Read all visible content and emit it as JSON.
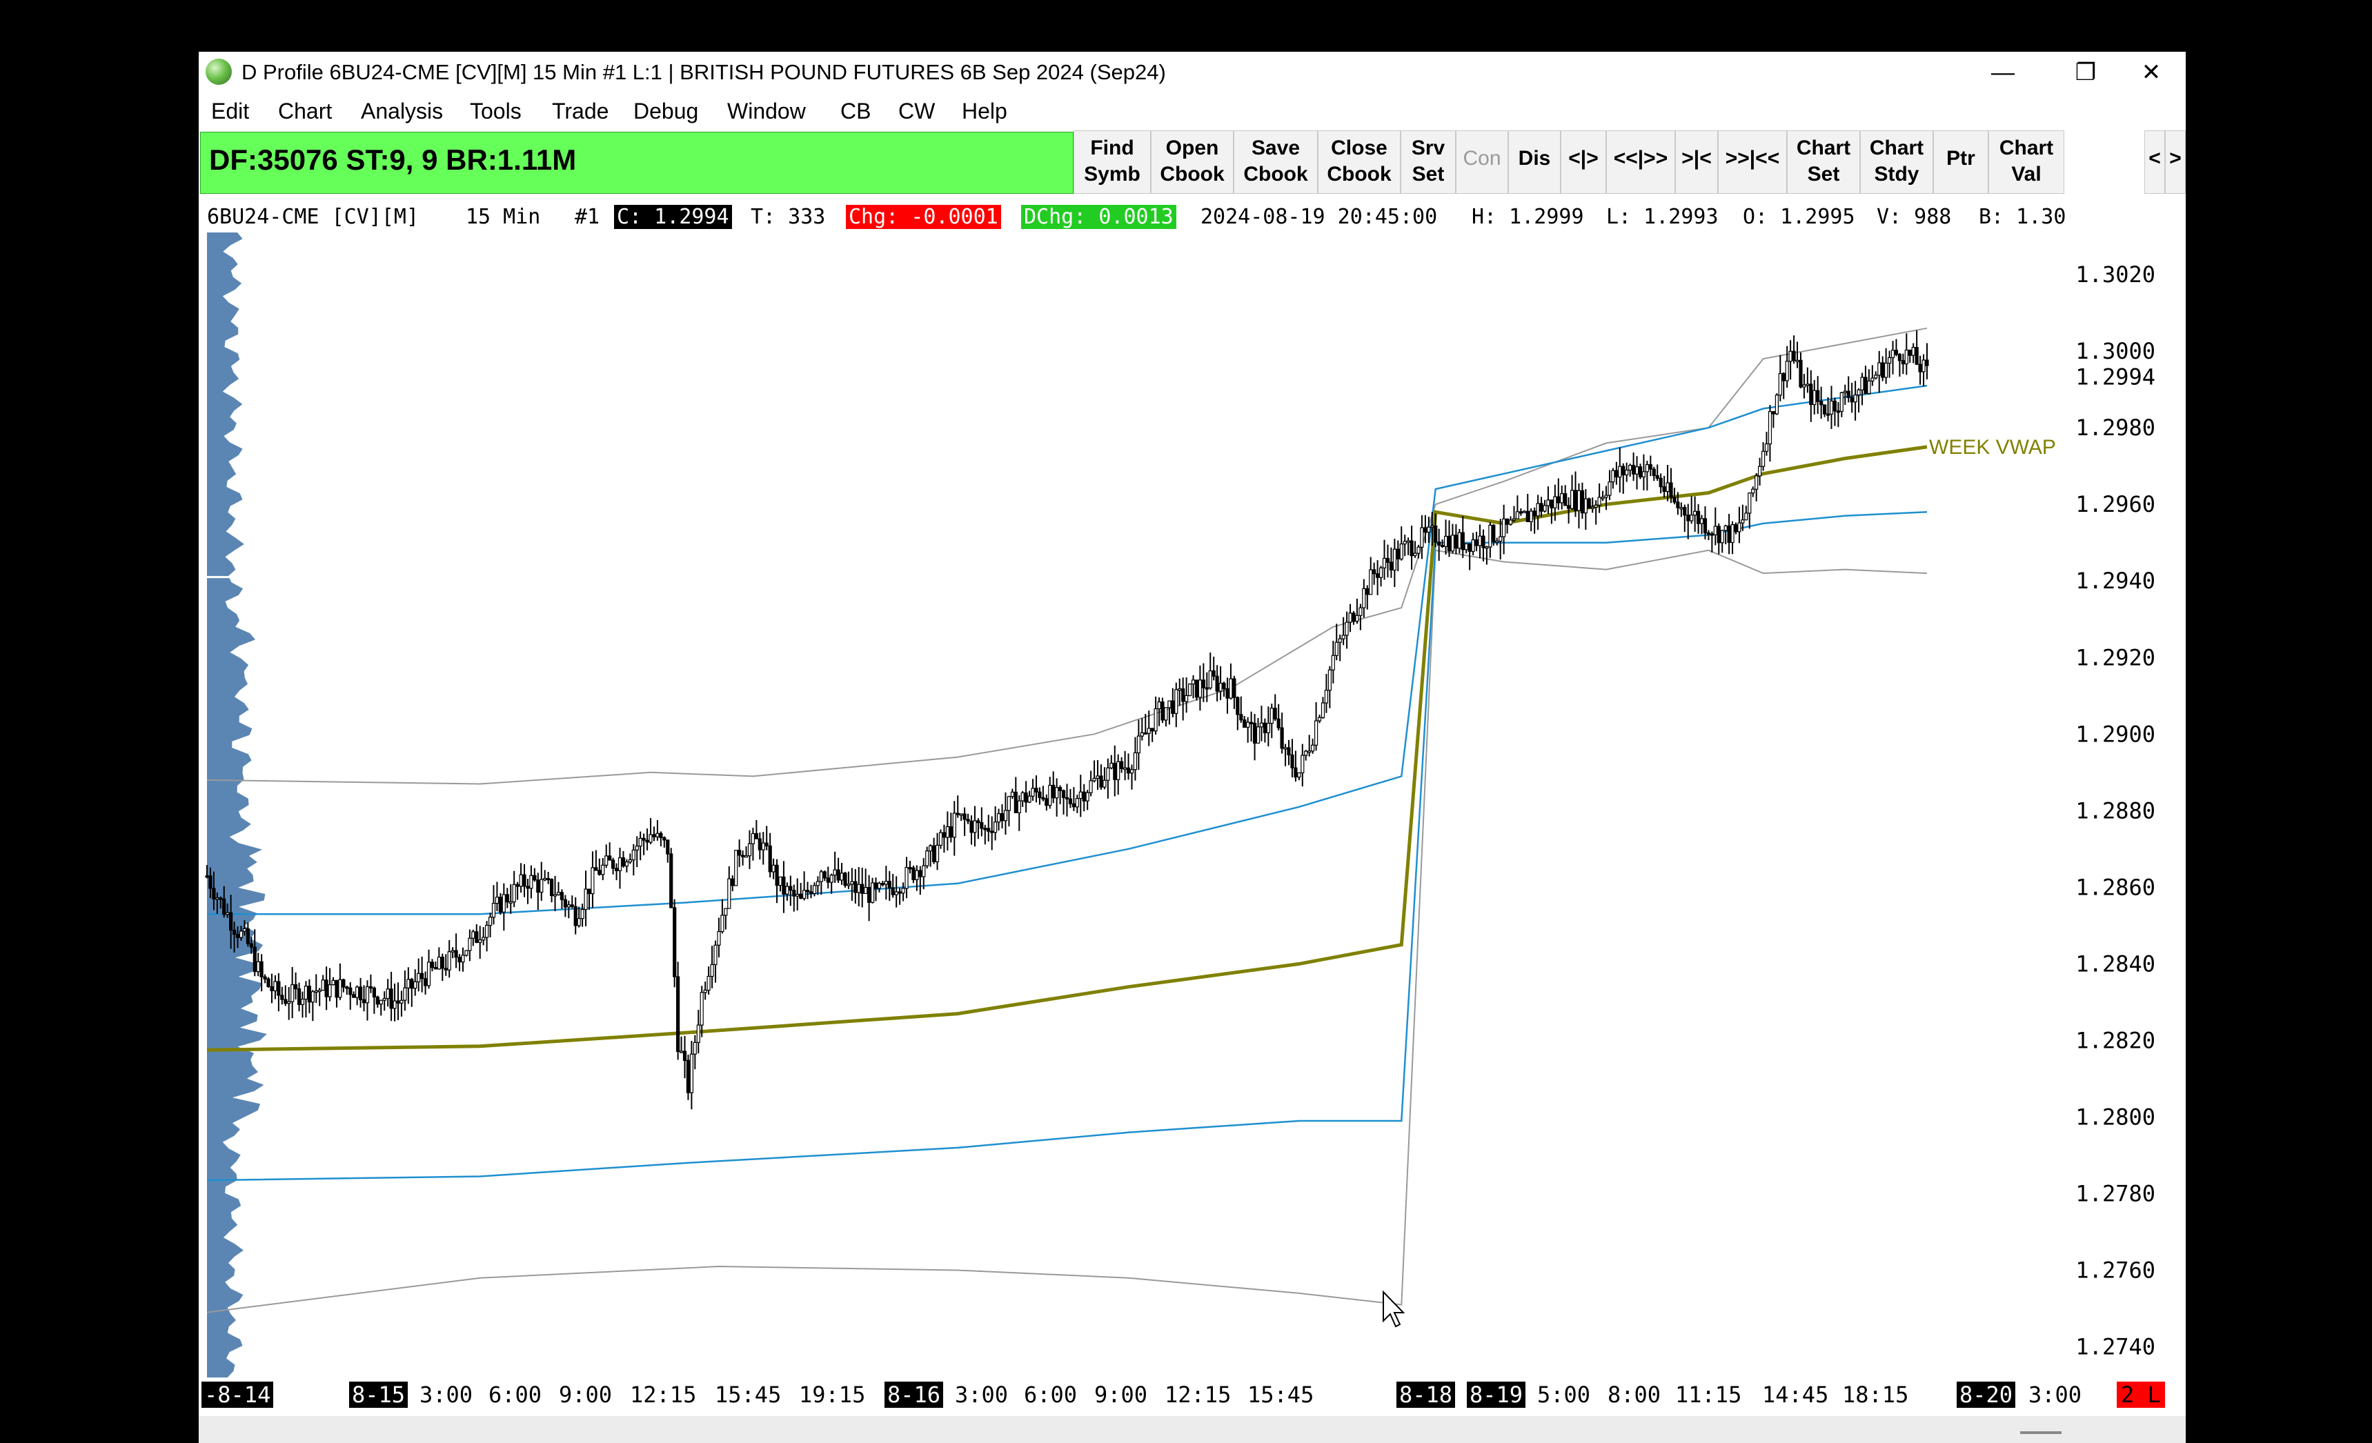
{
  "window": {
    "title": "D Profile 6BU24-CME [CV][M]  15 Min  #1 L:1 | BRITISH POUND FUTURES 6B Sep 2024 (Sep24)",
    "minimize_glyph": "—",
    "maximize_glyph": "❐",
    "close_glyph": "✕",
    "icon": "globe-icon"
  },
  "menu": [
    "Edit",
    "Chart",
    "Analysis",
    "Tools",
    "Trade",
    "Debug",
    "Window",
    "CB",
    "CW",
    "Help"
  ],
  "status": {
    "text": "DF:35076  ST:9, 9  BR:1.11M",
    "color": "#66ff5a"
  },
  "toolbar": [
    {
      "label": "Find\nSymb",
      "enabled": true
    },
    {
      "label": "Open\nCbook",
      "enabled": true
    },
    {
      "label": "Save\nCbook",
      "enabled": true
    },
    {
      "label": "Close\nCbook",
      "enabled": true
    },
    {
      "label": "Srv\nSet",
      "enabled": true
    },
    {
      "label": "Con",
      "enabled": false
    },
    {
      "label": "Dis",
      "enabled": true
    },
    {
      "label": "<|>",
      "enabled": true
    },
    {
      "label": "<<|>>",
      "enabled": true
    },
    {
      "label": ">|<",
      "enabled": true
    },
    {
      "label": ">>|<<",
      "enabled": true
    },
    {
      "label": "Chart\nSet",
      "enabled": true
    },
    {
      "label": "Chart\nStdy",
      "enabled": true
    },
    {
      "label": "Ptr",
      "enabled": true
    },
    {
      "label": "Chart\nVal",
      "enabled": true
    },
    {
      "label": "<",
      "enabled": true
    },
    {
      "label": ">",
      "enabled": true
    }
  ],
  "info": {
    "symbol": "6BU24-CME [CV][M]",
    "interval": "15 Min",
    "chart_num": "#1",
    "close": "C: 1.2994",
    "trades": "T: 333",
    "change": "Chg: -0.0001",
    "day_change": "DChg: 0.0013",
    "datetime": "2024-08-19 20:45:00",
    "high": "H: 1.2999",
    "low": "L: 1.2993",
    "open": "O: 1.2995",
    "volume": "V: 988",
    "bid": "B: 1.30",
    "colors": {
      "change_bg": "#ff0000",
      "day_change_bg": "#22cc22",
      "close_bg": "#000000"
    }
  },
  "chart_data": {
    "type": "line",
    "series_kind": "candlestick_ohlc",
    "y_ticks": [
      "1.3020",
      "1.3000",
      "1.2980",
      "1.2960",
      "1.2940",
      "1.2920",
      "1.2900",
      "1.2880",
      "1.2860",
      "1.2840",
      "1.2820",
      "1.2800",
      "1.2780",
      "1.2760",
      "1.2740"
    ],
    "ylim": [
      1.2732,
      1.3031
    ],
    "current_price_label": "1.2994",
    "current_price": 1.2994,
    "annotation": "WEEK VWAP",
    "x_labels": [
      {
        "text": "-8-14",
        "boxed": true
      },
      {
        "text": "8-15",
        "boxed": true
      },
      {
        "text": "3:00",
        "boxed": false
      },
      {
        "text": "6:00",
        "boxed": false
      },
      {
        "text": "9:00",
        "boxed": false
      },
      {
        "text": "12:15",
        "boxed": false
      },
      {
        "text": "15:45",
        "boxed": false
      },
      {
        "text": "19:15",
        "boxed": false
      },
      {
        "text": "8-16",
        "boxed": true
      },
      {
        "text": "3:00",
        "boxed": false
      },
      {
        "text": "6:00",
        "boxed": false
      },
      {
        "text": "9:00",
        "boxed": false
      },
      {
        "text": "12:15",
        "boxed": false
      },
      {
        "text": "15:45",
        "boxed": false
      },
      {
        "text": "8-18",
        "boxed": true
      },
      {
        "text": "8-19",
        "boxed": true
      },
      {
        "text": "5:00",
        "boxed": false
      },
      {
        "text": "8:00",
        "boxed": false
      },
      {
        "text": "11:15",
        "boxed": false
      },
      {
        "text": "14:45",
        "boxed": false
      },
      {
        "text": "18:15",
        "boxed": false
      },
      {
        "text": "8-20",
        "boxed": true
      },
      {
        "text": "3:00",
        "boxed": false
      }
    ],
    "alert_label": "2 L",
    "price_path": [
      [
        0,
        1.2863
      ],
      [
        4,
        1.2856
      ],
      [
        8,
        1.285
      ],
      [
        12,
        1.2845
      ],
      [
        16,
        1.2836
      ],
      [
        22,
        1.2831
      ],
      [
        30,
        1.2833
      ],
      [
        40,
        1.2834
      ],
      [
        50,
        1.2832
      ],
      [
        56,
        1.283
      ],
      [
        62,
        1.2836
      ],
      [
        70,
        1.284
      ],
      [
        78,
        1.2846
      ],
      [
        86,
        1.2856
      ],
      [
        94,
        1.2862
      ],
      [
        102,
        1.2859
      ],
      [
        108,
        1.2853
      ],
      [
        114,
        1.2864
      ],
      [
        122,
        1.2868
      ],
      [
        130,
        1.2874
      ],
      [
        135,
        1.287
      ],
      [
        138,
        1.282
      ],
      [
        141,
        1.2808
      ],
      [
        145,
        1.2832
      ],
      [
        150,
        1.285
      ],
      [
        156,
        1.287
      ],
      [
        162,
        1.2872
      ],
      [
        168,
        1.286
      ],
      [
        174,
        1.2856
      ],
      [
        180,
        1.2865
      ],
      [
        188,
        1.286
      ],
      [
        196,
        1.2858
      ],
      [
        204,
        1.2862
      ],
      [
        212,
        1.2868
      ],
      [
        220,
        1.2878
      ],
      [
        228,
        1.2875
      ],
      [
        236,
        1.2882
      ],
      [
        244,
        1.2885
      ],
      [
        252,
        1.2882
      ],
      [
        262,
        1.2889
      ],
      [
        270,
        1.2892
      ],
      [
        278,
        1.2905
      ],
      [
        286,
        1.291
      ],
      [
        294,
        1.2914
      ],
      [
        300,
        1.2912
      ],
      [
        304,
        1.2903
      ],
      [
        308,
        1.2899
      ],
      [
        312,
        1.2906
      ],
      [
        316,
        1.2894
      ],
      [
        320,
        1.289
      ],
      [
        324,
        1.29
      ],
      [
        330,
        1.292
      ],
      [
        336,
        1.2932
      ],
      [
        342,
        1.2942
      ],
      [
        350,
        1.2948
      ],
      [
        356,
        1.2951
      ],
      [
        360,
        1.2952
      ],
      [
        366,
        1.295
      ],
      [
        374,
        1.2951
      ],
      [
        382,
        1.2954
      ],
      [
        390,
        1.2959
      ],
      [
        398,
        1.2962
      ],
      [
        406,
        1.296
      ],
      [
        412,
        1.2967
      ],
      [
        418,
        1.297
      ],
      [
        424,
        1.2968
      ],
      [
        430,
        1.296
      ],
      [
        436,
        1.2957
      ],
      [
        442,
        1.2953
      ],
      [
        448,
        1.2952
      ],
      [
        452,
        1.296
      ],
      [
        456,
        1.2975
      ],
      [
        460,
        1.299
      ],
      [
        464,
        1.3
      ],
      [
        468,
        1.299
      ],
      [
        474,
        1.2985
      ],
      [
        480,
        1.2988
      ],
      [
        486,
        1.2991
      ],
      [
        492,
        1.2997
      ],
      [
        496,
        1.3
      ],
      [
        500,
        1.2998
      ],
      [
        504,
        1.2994
      ]
    ],
    "vwap_path": [
      [
        0,
        1.28175
      ],
      [
        80,
        1.28185
      ],
      [
        140,
        1.2822
      ],
      [
        220,
        1.2827
      ],
      [
        270,
        1.2834
      ],
      [
        320,
        1.284
      ],
      [
        350,
        1.2845
      ],
      [
        360,
        1.2958
      ],
      [
        380,
        1.2955
      ],
      [
        410,
        1.296
      ],
      [
        440,
        1.2963
      ],
      [
        456,
        1.2968
      ],
      [
        480,
        1.2972
      ],
      [
        504,
        1.2975
      ]
    ],
    "band_inner_upper": [
      [
        0,
        1.2853
      ],
      [
        80,
        1.2853
      ],
      [
        140,
        1.2856
      ],
      [
        220,
        1.2861
      ],
      [
        270,
        1.287
      ],
      [
        320,
        1.2881
      ],
      [
        350,
        1.2889
      ],
      [
        360,
        1.2964
      ],
      [
        380,
        1.2968
      ],
      [
        410,
        1.2974
      ],
      [
        440,
        1.298
      ],
      [
        456,
        1.2985
      ],
      [
        480,
        1.2988
      ],
      [
        504,
        1.2991
      ]
    ],
    "band_inner_lower": [
      [
        0,
        1.27835
      ],
      [
        80,
        1.27845
      ],
      [
        140,
        1.2788
      ],
      [
        220,
        1.2792
      ],
      [
        270,
        1.2796
      ],
      [
        320,
        1.2799
      ],
      [
        350,
        1.2799
      ],
      [
        360,
        1.295
      ],
      [
        380,
        1.295
      ],
      [
        410,
        1.295
      ],
      [
        440,
        1.2952
      ],
      [
        456,
        1.2955
      ],
      [
        480,
        1.2957
      ],
      [
        504,
        1.2958
      ]
    ],
    "band_outer_upper": [
      [
        0,
        1.2888
      ],
      [
        80,
        1.2887
      ],
      [
        130,
        1.289
      ],
      [
        160,
        1.2889
      ],
      [
        220,
        1.2894
      ],
      [
        260,
        1.29
      ],
      [
        300,
        1.2912
      ],
      [
        330,
        1.2928
      ],
      [
        350,
        1.2933
      ],
      [
        360,
        1.296
      ],
      [
        380,
        1.2966
      ],
      [
        410,
        1.2976
      ],
      [
        440,
        1.298
      ],
      [
        456,
        1.2998
      ],
      [
        480,
        1.3002
      ],
      [
        504,
        1.3006
      ]
    ],
    "band_outer_lower": [
      [
        0,
        1.2749
      ],
      [
        80,
        1.2758
      ],
      [
        150,
        1.2761
      ],
      [
        220,
        1.276
      ],
      [
        270,
        1.2758
      ],
      [
        320,
        1.2754
      ],
      [
        350,
        1.2751
      ],
      [
        360,
        1.2948
      ],
      [
        380,
        1.2945
      ],
      [
        410,
        1.2943
      ],
      [
        440,
        1.2948
      ],
      [
        456,
        1.2942
      ],
      [
        480,
        1.2943
      ],
      [
        504,
        1.2942
      ]
    ],
    "colors": {
      "price": "#000000",
      "vwap": "#808000",
      "band_inner": "#1f8fd0",
      "band_outer": "#999999",
      "volume_profile": "#5b86b4",
      "alert_bg": "#ff0000"
    }
  }
}
